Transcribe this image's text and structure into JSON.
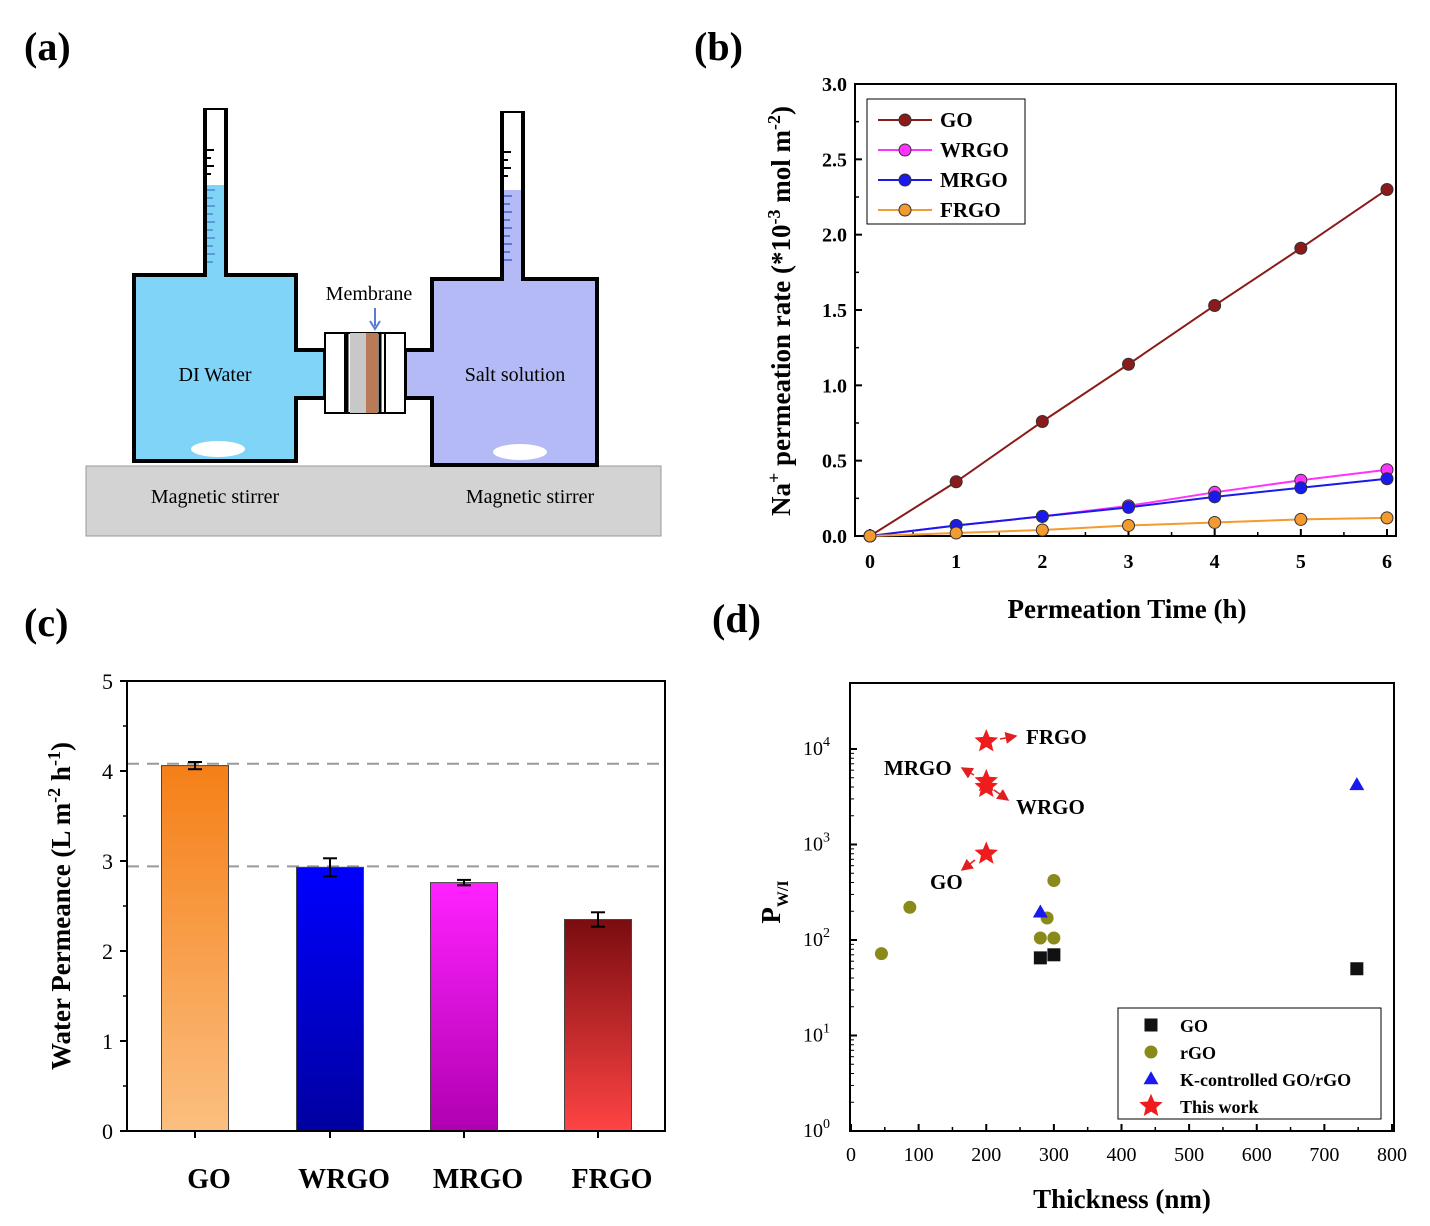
{
  "panel_labels": {
    "a": "(a)",
    "b": "(b)",
    "c": "(c)",
    "d": "(d)"
  },
  "schematic": {
    "left_label": "DI Water",
    "right_label": "Salt solution",
    "membrane_label": "Membrane",
    "stirrer_left": "Magnetic stirrer",
    "stirrer_right": "Magnetic stirrer",
    "colors": {
      "left": "#7fd4f8",
      "right": "#b3baf6",
      "base": "#d3d3d3"
    }
  },
  "chart_data": [
    {
      "id": "b",
      "type": "line",
      "xlabel": "Permeation Time (h)",
      "ylabel_parts": [
        "Na",
        "+",
        " permeation rate (*10",
        "-3",
        " mol m",
        "-2",
        ")"
      ],
      "xlim": [
        0,
        6
      ],
      "ylim": [
        0,
        3.0
      ],
      "x_ticks": [
        "0",
        "1",
        "2",
        "3",
        "4",
        "5",
        "6"
      ],
      "y_ticks": [
        "0.0",
        "0.5",
        "1.0",
        "1.5",
        "2.0",
        "2.5",
        "3.0"
      ],
      "x": [
        0,
        1,
        2,
        3,
        4,
        5,
        6
      ],
      "legend_position": "top-left",
      "series": [
        {
          "name": "GO",
          "color": "#8b1a1a",
          "values": [
            0,
            0.36,
            0.76,
            1.14,
            1.53,
            1.91,
            2.3
          ]
        },
        {
          "name": "WRGO",
          "color": "#ff33ff",
          "values": [
            0,
            0.07,
            0.13,
            0.2,
            0.29,
            0.37,
            0.44
          ]
        },
        {
          "name": "MRGO",
          "color": "#1a1aee",
          "values": [
            0,
            0.07,
            0.13,
            0.19,
            0.26,
            0.32,
            0.38
          ]
        },
        {
          "name": "FRGO",
          "color": "#f59a2e",
          "values": [
            0,
            0.02,
            0.04,
            0.07,
            0.09,
            0.11,
            0.12
          ]
        }
      ]
    },
    {
      "id": "c",
      "type": "bar",
      "xlabel": "",
      "ylabel_parts": [
        "Water Permeance (L m",
        "-2",
        " h",
        "-1",
        ")"
      ],
      "ylim": [
        0,
        5
      ],
      "y_ticks": [
        "0",
        "1",
        "2",
        "3",
        "4",
        "5"
      ],
      "categories": [
        "GO",
        "WRGO",
        "MRGO",
        "FRGO"
      ],
      "values": [
        4.06,
        2.93,
        2.76,
        2.35
      ],
      "errors": [
        0.04,
        0.1,
        0.03,
        0.08
      ],
      "reference_lines": [
        4.08,
        2.94
      ],
      "gradients": [
        [
          "#fbbf80",
          "#f57f17"
        ],
        [
          "#0000a0",
          "#0000ff"
        ],
        [
          "#b000b0",
          "#ff22ff"
        ],
        [
          "#ff4444",
          "#7a0c10"
        ]
      ]
    },
    {
      "id": "d",
      "type": "scatter",
      "xlabel": "Thickness (nm)",
      "ylabel_main": "P",
      "ylabel_sub": "W/I",
      "xlim": [
        0,
        800
      ],
      "ylim_log10": [
        0,
        4.7
      ],
      "x_ticks": [
        "0",
        "100",
        "200",
        "300",
        "400",
        "500",
        "600",
        "700",
        "800"
      ],
      "y_tick_base": "10",
      "y_tick_exps": [
        "0",
        "1",
        "2",
        "3",
        "4"
      ],
      "legend_position": "bottom-right",
      "series": [
        {
          "name": "GO",
          "marker": "square",
          "color": "#111111",
          "points": [
            [
              280,
              65
            ],
            [
              300,
              70
            ],
            [
              748,
              50
            ]
          ]
        },
        {
          "name": "rGO",
          "marker": "circle",
          "color": "#8a8a1a",
          "points": [
            [
              45,
              72
            ],
            [
              87,
              220
            ],
            [
              280,
              105
            ],
            [
              290,
              170
            ],
            [
              300,
              420
            ],
            [
              300,
              105
            ]
          ]
        },
        {
          "name": "K-controlled GO/rGO",
          "marker": "triangle",
          "color": "#1a1aee",
          "points": [
            [
              280,
              195
            ],
            [
              748,
              4200
            ]
          ]
        },
        {
          "name": "This work",
          "marker": "star",
          "color": "#ee1c1c",
          "points": [
            [
              200,
              12000
            ],
            [
              200,
              4600
            ],
            [
              200,
              4000
            ],
            [
              200,
              800
            ]
          ]
        }
      ],
      "annotations": [
        "FRGO",
        "MRGO",
        "WRGO",
        "GO"
      ]
    }
  ]
}
